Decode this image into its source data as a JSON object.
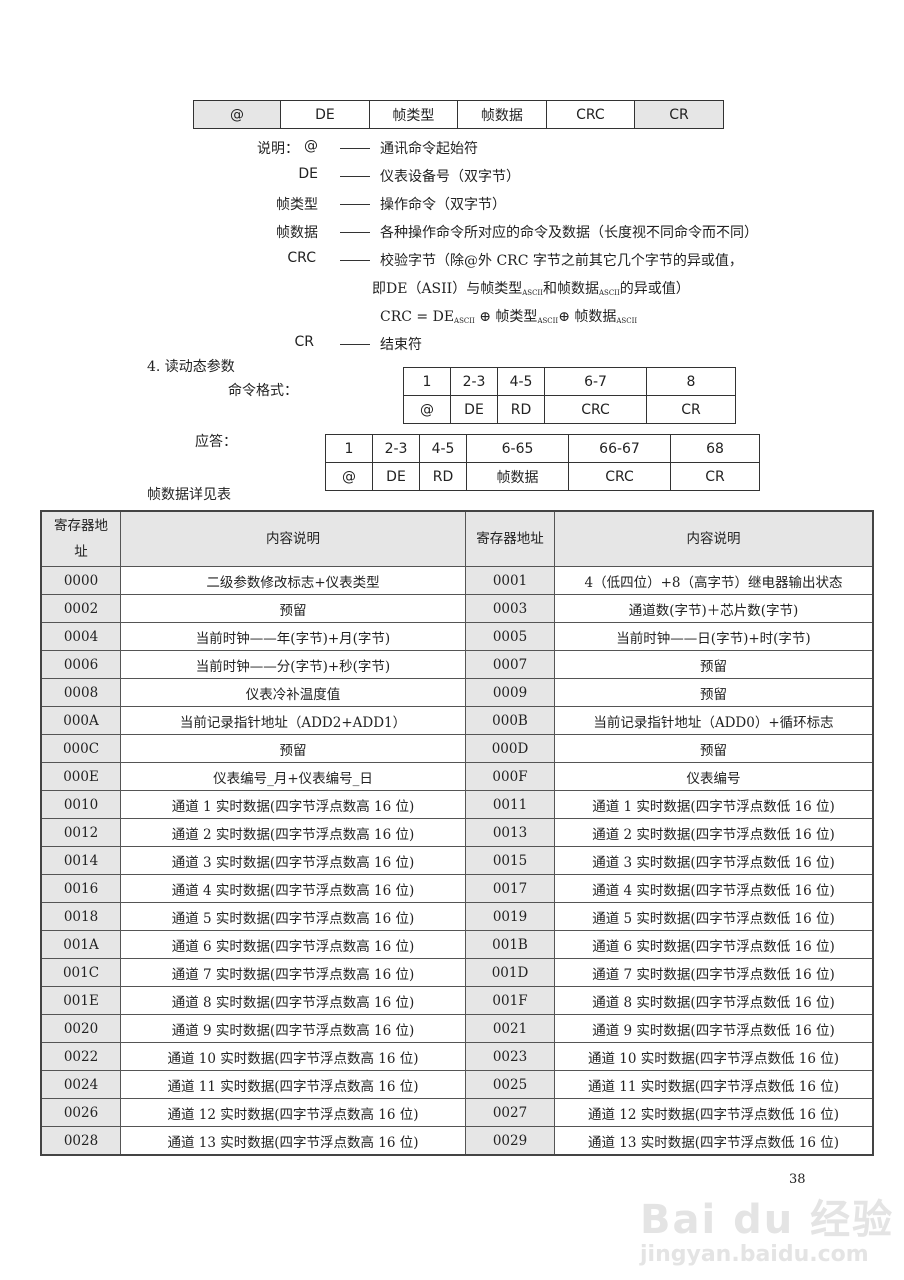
{
  "frame_table": [
    "@",
    "DE",
    "帧类型",
    "帧数据",
    "CRC",
    "CR"
  ],
  "legend": {
    "intro": "说明：",
    "items": [
      {
        "label": "@",
        "text": "通讯命令起始符"
      },
      {
        "label": "DE",
        "text": "仪表设备号（双字节）"
      },
      {
        "label": "帧类型",
        "text": "操作命令（双字节）"
      },
      {
        "label": "帧数据",
        "text": "各种操作命令所对应的命令及数据（长度视不同命令而不同）"
      },
      {
        "label": "CRC",
        "text": "校验字节（除@外 CRC 字节之前其它几个字节的异或值，"
      },
      {
        "label": "CR",
        "text": "结束符"
      }
    ],
    "crc_line2_a": "即DE（ASII）与帧类型",
    "crc_line2_b": "和帧数据",
    "crc_line2_c": "的异或值）",
    "ascii_sub": "ASCII",
    "crc_formula_a": "CRC = DE",
    "crc_formula_b": " ⊕  帧类型",
    "crc_formula_c": "⊕  帧数据"
  },
  "section": {
    "title": "4.  读动态参数",
    "command_label": "命令格式：",
    "command_table": {
      "positions": [
        "1",
        "2-3",
        "4-5",
        "6-7",
        "8"
      ],
      "fields": [
        "@",
        "DE",
        "RD",
        "CRC",
        "CR"
      ]
    },
    "response_label": "应答：",
    "response_table": {
      "positions": [
        "1",
        "2-3",
        "4-5",
        "6-65",
        "66-67",
        "68"
      ],
      "fields": [
        "@",
        "DE",
        "RD",
        "帧数据",
        "CRC",
        "CR"
      ]
    },
    "detail_label": "帧数据详见表"
  },
  "register_table": {
    "headers": {
      "addr_left": "寄存器地址",
      "content_left": "内容说明",
      "addr_right": "寄存器地址",
      "content_right": "内容说明"
    },
    "rows": [
      [
        "0000",
        "二级参数修改标志+仪表类型",
        "0001",
        "4（低四位）+8（高字节）继电器输出状态"
      ],
      [
        "0002",
        "预留",
        "0003",
        "通道数(字节)＋芯片数(字节)"
      ],
      [
        "0004",
        "当前时钟——年(字节)+月(字节)",
        "0005",
        "当前时钟——日(字节)+时(字节)"
      ],
      [
        "0006",
        "当前时钟——分(字节)+秒(字节)",
        "0007",
        "预留"
      ],
      [
        "0008",
        "仪表冷补温度值",
        "0009",
        "预留"
      ],
      [
        "000A",
        "当前记录指针地址（ADD2+ADD1）",
        "000B",
        "当前记录指针地址（ADD0）+循环标志"
      ],
      [
        "000C",
        "预留",
        "000D",
        "预留"
      ],
      [
        "000E",
        "仪表编号_月+仪表编号_日",
        "000F",
        "仪表编号"
      ],
      [
        "0010",
        "通道 1 实时数据(四字节浮点数高 16 位)",
        "0011",
        "通道 1 实时数据(四字节浮点数低 16 位)"
      ],
      [
        "0012",
        "通道 2 实时数据(四字节浮点数高 16 位)",
        "0013",
        "通道 2 实时数据(四字节浮点数低 16 位)"
      ],
      [
        "0014",
        "通道 3 实时数据(四字节浮点数高 16 位)",
        "0015",
        "通道 3 实时数据(四字节浮点数低 16 位)"
      ],
      [
        "0016",
        "通道 4 实时数据(四字节浮点数高 16 位)",
        "0017",
        "通道 4 实时数据(四字节浮点数低 16 位)"
      ],
      [
        "0018",
        "通道 5 实时数据(四字节浮点数高 16 位)",
        "0019",
        "通道 5 实时数据(四字节浮点数低 16 位)"
      ],
      [
        "001A",
        "通道 6 实时数据(四字节浮点数高 16 位)",
        "001B",
        "通道 6 实时数据(四字节浮点数低 16 位)"
      ],
      [
        "001C",
        "通道 7 实时数据(四字节浮点数高 16 位)",
        "001D",
        "通道 7 实时数据(四字节浮点数低 16 位)"
      ],
      [
        "001E",
        "通道 8 实时数据(四字节浮点数高 16 位)",
        "001F",
        "通道 8 实时数据(四字节浮点数低 16 位)"
      ],
      [
        "0020",
        "通道 9 实时数据(四字节浮点数高 16 位)",
        "0021",
        "通道 9 实时数据(四字节浮点数低 16 位)"
      ],
      [
        "0022",
        "通道 10 实时数据(四字节浮点数高 16 位)",
        "0023",
        "通道 10 实时数据(四字节浮点数低 16 位)"
      ],
      [
        "0024",
        "通道 11 实时数据(四字节浮点数高 16 位)",
        "0025",
        "通道 11 实时数据(四字节浮点数低 16 位)"
      ],
      [
        "0026",
        "通道 12 实时数据(四字节浮点数高 16 位)",
        "0027",
        "通道 12 实时数据(四字节浮点数低 16 位)"
      ],
      [
        "0028",
        "通道 13 实时数据(四字节浮点数高 16 位)",
        "0029",
        "通道 13 实时数据(四字节浮点数低 16 位)"
      ]
    ]
  },
  "page_number": "38",
  "watermark": {
    "brand": "Bai du 经验",
    "url": "jingyan.baidu.com"
  }
}
